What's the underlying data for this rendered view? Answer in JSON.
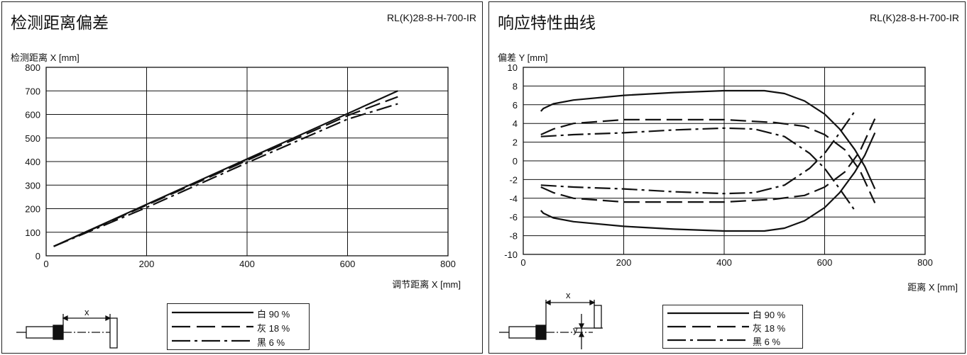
{
  "left": {
    "title": "检测距离偏差",
    "model": "RL(K)28-8-H-700-IR",
    "ylabel": "检测距离 X [mm]",
    "xlabel": "调节距离 X [mm]",
    "diagram_label": "x"
  },
  "right": {
    "title": "响应特性曲线",
    "model": "RL(K)28-8-H-700-IR",
    "ylabel": "偏差 Y [mm]",
    "xlabel": "距离 X [mm]",
    "diagram_label_x": "x",
    "diagram_label_y": "y"
  },
  "legend": [
    {
      "label": "白 90 %",
      "style": "solid"
    },
    {
      "label": "灰 18 %",
      "style": "dash"
    },
    {
      "label": "黑 6 %",
      "style": "dashdot"
    }
  ],
  "chart_data": [
    {
      "type": "line",
      "title": "检测距离偏差",
      "xlabel": "调节距离 X [mm]",
      "ylabel": "检测距离 X [mm]",
      "xlim": [
        0,
        800
      ],
      "ylim": [
        0,
        800
      ],
      "xticks": [
        0,
        200,
        400,
        600,
        800
      ],
      "yticks": [
        0,
        100,
        200,
        300,
        400,
        500,
        600,
        700,
        800
      ],
      "grid": true,
      "series": [
        {
          "name": "白 90 %",
          "style": "solid",
          "x": [
            15,
            700
          ],
          "y": [
            40,
            700
          ]
        },
        {
          "name": "灰 18 %",
          "style": "dash",
          "x": [
            15,
            200,
            400,
            600,
            700
          ],
          "y": [
            40,
            215,
            405,
            595,
            675
          ]
        },
        {
          "name": "黑 6 %",
          "style": "dashdot",
          "x": [
            15,
            200,
            400,
            600,
            700
          ],
          "y": [
            40,
            205,
            395,
            580,
            645
          ]
        }
      ]
    },
    {
      "type": "line",
      "title": "响应特性曲线",
      "xlabel": "距离 X [mm]",
      "ylabel": "偏差 Y [mm]",
      "xlim": [
        0,
        800
      ],
      "ylim": [
        -10,
        10
      ],
      "xticks": [
        0,
        200,
        400,
        600,
        800
      ],
      "yticks": [
        -10,
        -8,
        -6,
        -4,
        -2,
        0,
        2,
        4,
        6,
        8,
        10
      ],
      "grid": true,
      "series": [
        {
          "name": "白 90 %",
          "style": "solid",
          "x": [
            35,
            40,
            60,
            100,
            200,
            300,
            400,
            480,
            520,
            560,
            600,
            630,
            660,
            680,
            700
          ],
          "y": [
            5.3,
            5.6,
            6.1,
            6.5,
            7.0,
            7.3,
            7.5,
            7.5,
            7.2,
            6.4,
            5.0,
            3.4,
            1.2,
            -0.6,
            -3.0
          ]
        },
        {
          "name": "白 90 %",
          "style": "solid",
          "x": [
            35,
            40,
            60,
            100,
            200,
            300,
            400,
            480,
            520,
            560,
            600,
            630,
            660,
            680,
            700
          ],
          "y": [
            -5.3,
            -5.6,
            -6.1,
            -6.5,
            -7.0,
            -7.3,
            -7.5,
            -7.5,
            -7.2,
            -6.4,
            -5.0,
            -3.4,
            -1.2,
            0.6,
            3.0
          ]
        },
        {
          "name": "灰 18 %",
          "style": "dash",
          "x": [
            35,
            60,
            100,
            200,
            300,
            400,
            500,
            560,
            600,
            640,
            670,
            700
          ],
          "y": [
            2.8,
            3.4,
            4.0,
            4.4,
            4.4,
            4.4,
            4.1,
            3.7,
            2.8,
            1.2,
            -1.0,
            -4.5
          ]
        },
        {
          "name": "灰 18 %",
          "style": "dash",
          "x": [
            35,
            60,
            100,
            200,
            300,
            400,
            500,
            560,
            600,
            640,
            670,
            700
          ],
          "y": [
            -2.8,
            -3.4,
            -4.0,
            -4.4,
            -4.4,
            -4.4,
            -4.1,
            -3.7,
            -2.8,
            -1.2,
            1.0,
            4.5
          ]
        },
        {
          "name": "黑 6 %",
          "style": "dashdot",
          "x": [
            35,
            100,
            200,
            300,
            400,
            460,
            520,
            570,
            600,
            630,
            660
          ],
          "y": [
            2.6,
            2.8,
            3.0,
            3.3,
            3.5,
            3.4,
            2.6,
            0.8,
            -0.8,
            -3.0,
            -5.3
          ]
        },
        {
          "name": "黑 6 %",
          "style": "dashdot",
          "x": [
            35,
            100,
            200,
            300,
            400,
            460,
            520,
            570,
            600,
            630,
            660
          ],
          "y": [
            -2.6,
            -2.8,
            -3.0,
            -3.3,
            -3.5,
            -3.4,
            -2.6,
            -0.8,
            0.8,
            3.0,
            5.3
          ]
        }
      ]
    }
  ]
}
